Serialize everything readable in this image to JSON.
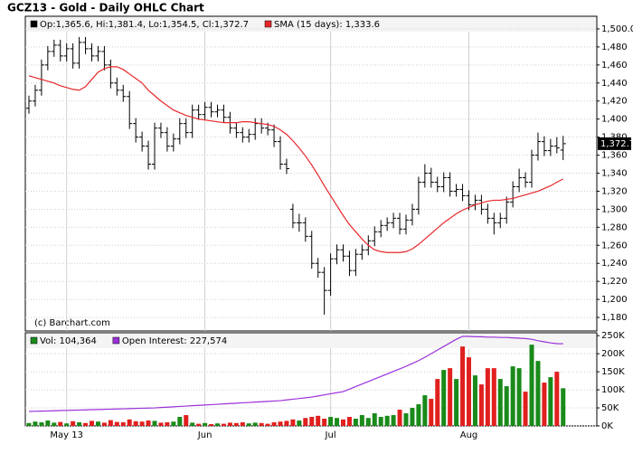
{
  "chart_data": [
    {
      "type": "ohlc",
      "title": "GCZ13 - Gold - Daily OHLC Chart",
      "annotation": "(c) Barchart.com",
      "ylim": [
        1165,
        1514
      ],
      "yticks": [
        {
          "value": 1500,
          "label": "1,500.0"
        },
        {
          "value": 1480,
          "label": "1,480"
        },
        {
          "value": 1460,
          "label": "1,460"
        },
        {
          "value": 1440,
          "label": "1,440"
        },
        {
          "value": 1420,
          "label": "1,420"
        },
        {
          "value": 1400,
          "label": "1,400"
        },
        {
          "value": 1380,
          "label": "1,380"
        },
        {
          "value": 1360,
          "label": "1,360"
        },
        {
          "value": 1340,
          "label": "1,340"
        },
        {
          "value": 1320,
          "label": "1,320"
        },
        {
          "value": 1300,
          "label": "1,300"
        },
        {
          "value": 1280,
          "label": "1,280"
        },
        {
          "value": 1260,
          "label": "1,260"
        },
        {
          "value": 1240,
          "label": "1,240"
        },
        {
          "value": 1220,
          "label": "1,220"
        },
        {
          "value": 1200,
          "label": "1,200"
        },
        {
          "value": 1180,
          "label": "1,180"
        }
      ],
      "grid": true,
      "last_price": {
        "value": 1372.7,
        "label": "1,372.7"
      },
      "series": [
        {
          "name": "Op:1,365.6, Hi:1,381.4, Lo:1,354.5, Cl:1,372.7",
          "color": "#000000",
          "open": [
            1412,
            1420,
            1432,
            1460,
            1475,
            1482,
            1470,
            1478,
            1462,
            1485,
            1478,
            1470,
            1475,
            1460,
            1440,
            1432,
            1425,
            1395,
            1380,
            1370,
            1350,
            1390,
            1385,
            1370,
            1378,
            1395,
            1385,
            1410,
            1405,
            1413,
            1408,
            1410,
            1402,
            1390,
            1385,
            1380,
            1383,
            1395,
            1390,
            1388,
            1375,
            1350,
            1300,
            1285,
            1285,
            1270,
            1240,
            1230,
            1210,
            1245,
            1255,
            1248,
            1232,
            1250,
            1255,
            1265,
            1275,
            1282,
            1285,
            1290,
            1278,
            1288,
            1300,
            1330,
            1340,
            1330,
            1325,
            1335,
            1320,
            1322,
            1315,
            1305,
            1310,
            1300,
            1290,
            1285,
            1290,
            1308,
            1325,
            1335,
            1330,
            1360,
            1375,
            1365,
            1370,
            1365.6
          ],
          "high": [
            1426,
            1438,
            1466,
            1481,
            1488,
            1488,
            1484,
            1484,
            1491,
            1491,
            1484,
            1481,
            1481,
            1466,
            1446,
            1438,
            1431,
            1401,
            1386,
            1376,
            1396,
            1396,
            1391,
            1384,
            1401,
            1401,
            1416,
            1416,
            1419,
            1419,
            1416,
            1416,
            1408,
            1396,
            1391,
            1389,
            1401,
            1401,
            1396,
            1394,
            1381,
            1356,
            1306,
            1295,
            1291,
            1276,
            1246,
            1236,
            1251,
            1261,
            1261,
            1254,
            1256,
            1261,
            1271,
            1281,
            1288,
            1291,
            1296,
            1296,
            1294,
            1306,
            1336,
            1350,
            1346,
            1336,
            1341,
            1341,
            1328,
            1328,
            1321,
            1316,
            1316,
            1306,
            1296,
            1296,
            1314,
            1331,
            1345,
            1341,
            1366,
            1385,
            1381,
            1378,
            1380,
            1381.4
          ],
          "low": [
            1406,
            1414,
            1426,
            1454,
            1469,
            1464,
            1464,
            1456,
            1456,
            1472,
            1464,
            1464,
            1454,
            1434,
            1426,
            1419,
            1389,
            1374,
            1364,
            1344,
            1344,
            1379,
            1364,
            1364,
            1372,
            1379,
            1379,
            1399,
            1399,
            1402,
            1402,
            1396,
            1384,
            1379,
            1374,
            1374,
            1377,
            1384,
            1382,
            1369,
            1344,
            1339,
            1279,
            1275,
            1264,
            1234,
            1224,
            1183,
            1204,
            1239,
            1242,
            1226,
            1226,
            1244,
            1249,
            1259,
            1269,
            1276,
            1279,
            1272,
            1272,
            1282,
            1294,
            1324,
            1324,
            1319,
            1319,
            1314,
            1314,
            1309,
            1299,
            1299,
            1294,
            1284,
            1272,
            1279,
            1284,
            1302,
            1319,
            1324,
            1324,
            1354,
            1359,
            1359,
            1362,
            1354.5
          ],
          "close": [
            1420,
            1432,
            1460,
            1475,
            1482,
            1470,
            1478,
            1462,
            1485,
            1478,
            1470,
            1475,
            1460,
            1440,
            1432,
            1425,
            1395,
            1380,
            1370,
            1350,
            1390,
            1385,
            1370,
            1378,
            1395,
            1385,
            1410,
            1405,
            1413,
            1408,
            1410,
            1402,
            1390,
            1385,
            1380,
            1383,
            1395,
            1390,
            1388,
            1375,
            1350,
            1345,
            1285,
            1285,
            1270,
            1240,
            1230,
            1210,
            1245,
            1255,
            1248,
            1232,
            1250,
            1255,
            1265,
            1275,
            1282,
            1285,
            1290,
            1278,
            1288,
            1300,
            1330,
            1340,
            1330,
            1325,
            1335,
            1320,
            1322,
            1315,
            1305,
            1310,
            1300,
            1290,
            1285,
            1290,
            1308,
            1325,
            1335,
            1330,
            1360,
            1375,
            1365,
            1370,
            1368,
            1372.7
          ]
        },
        {
          "name": "SMA (15 days): 1,333.6",
          "type": "line",
          "color": "#e8262a",
          "values": [
            1448,
            1446,
            1444,
            1442,
            1440,
            1437,
            1435,
            1433,
            1432,
            1436,
            1444,
            1452,
            1456,
            1458,
            1458,
            1455,
            1450,
            1445,
            1440,
            1432,
            1426,
            1420,
            1415,
            1410,
            1407,
            1404,
            1402,
            1400,
            1399,
            1398,
            1397,
            1396,
            1396,
            1396,
            1397,
            1397,
            1396,
            1395,
            1394,
            1392,
            1388,
            1383,
            1376,
            1368,
            1359,
            1349,
            1338,
            1326,
            1315,
            1304,
            1293,
            1283,
            1275,
            1267,
            1260,
            1255,
            1253,
            1252,
            1252,
            1252,
            1253,
            1256,
            1261,
            1267,
            1273,
            1279,
            1285,
            1290,
            1295,
            1299,
            1302,
            1305,
            1307,
            1309,
            1310,
            1310,
            1311,
            1312,
            1314,
            1316,
            1318,
            1320,
            1323,
            1326,
            1330,
            1333.6
          ]
        }
      ]
    },
    {
      "type": "bar",
      "categories": [
        null,
        null,
        null,
        null,
        null,
        null,
        "May 13",
        null,
        null,
        null,
        null,
        null,
        null,
        null,
        null,
        null,
        null,
        null,
        null,
        null,
        null,
        null,
        null,
        null,
        null,
        null,
        null,
        null,
        "Jun",
        null,
        null,
        null,
        null,
        null,
        null,
        null,
        null,
        null,
        null,
        null,
        null,
        null,
        null,
        null,
        null,
        null,
        null,
        null,
        "Jul",
        null,
        null,
        null,
        null,
        null,
        null,
        null,
        null,
        null,
        null,
        null,
        null,
        null,
        null,
        null,
        null,
        null,
        null,
        null,
        null,
        null,
        "Aug",
        null,
        null,
        null,
        null,
        null,
        null,
        null,
        null,
        null,
        null,
        null,
        null,
        null,
        null,
        null
      ],
      "ylim": [
        0,
        258000
      ],
      "yticks": [
        {
          "value": 250000,
          "label": "250K"
        },
        {
          "value": 200000,
          "label": "200K"
        },
        {
          "value": 150000,
          "label": "150K"
        },
        {
          "value": 100000,
          "label": "100K"
        },
        {
          "value": 50000,
          "label": "50K"
        },
        {
          "value": 0,
          "label": "0K"
        }
      ],
      "series": [
        {
          "name": "Vol: 104,364",
          "color": "#1a8a1a",
          "up_color": "#1a8a1a",
          "down_color": "#e0201e",
          "values": [
            8000,
            12000,
            10000,
            15000,
            9000,
            11000,
            7000,
            13000,
            10000,
            8000,
            14000,
            12000,
            9000,
            16000,
            11000,
            10000,
            18000,
            13000,
            12000,
            15000,
            14000,
            9000,
            10000,
            12000,
            25000,
            30000,
            9000,
            6000,
            8000,
            5000,
            7000,
            6000,
            9000,
            8000,
            10000,
            7000,
            9000,
            8000,
            6000,
            10000,
            12000,
            14000,
            18000,
            15000,
            22000,
            25000,
            28000,
            20000,
            25000,
            22000,
            18000,
            25000,
            20000,
            30000,
            22000,
            35000,
            25000,
            28000,
            30000,
            45000,
            35000,
            50000,
            60000,
            85000,
            75000,
            130000,
            155000,
            160000,
            130000,
            220000,
            190000,
            140000,
            115000,
            160000,
            160000,
            130000,
            110000,
            165000,
            160000,
            95000,
            225000,
            180000,
            120000,
            135000,
            150000,
            104364
          ]
        },
        {
          "name": "Open Interest: 227,574",
          "type": "line",
          "color": "#9b30d9",
          "values": [
            40000,
            40500,
            41000,
            41500,
            42000,
            42500,
            43000,
            43500,
            44000,
            44500,
            45000,
            45500,
            46000,
            46500,
            47000,
            47500,
            48000,
            48500,
            49000,
            49500,
            50000,
            51000,
            52000,
            53000,
            54000,
            55000,
            56000,
            57000,
            58000,
            59000,
            60000,
            61000,
            62000,
            63000,
            64000,
            65000,
            66000,
            67000,
            68000,
            69000,
            70000,
            72000,
            74000,
            76000,
            78000,
            80000,
            83000,
            86000,
            89000,
            92000,
            95000,
            102000,
            109000,
            116000,
            123000,
            130000,
            137000,
            144000,
            151000,
            158000,
            165000,
            173000,
            181000,
            190000,
            200000,
            210000,
            220000,
            230000,
            240000,
            248000,
            248000,
            247000,
            247000,
            246000,
            246000,
            245000,
            245000,
            244000,
            243000,
            242000,
            240000,
            236000,
            233000,
            230000,
            228000,
            227574
          ]
        }
      ]
    }
  ]
}
